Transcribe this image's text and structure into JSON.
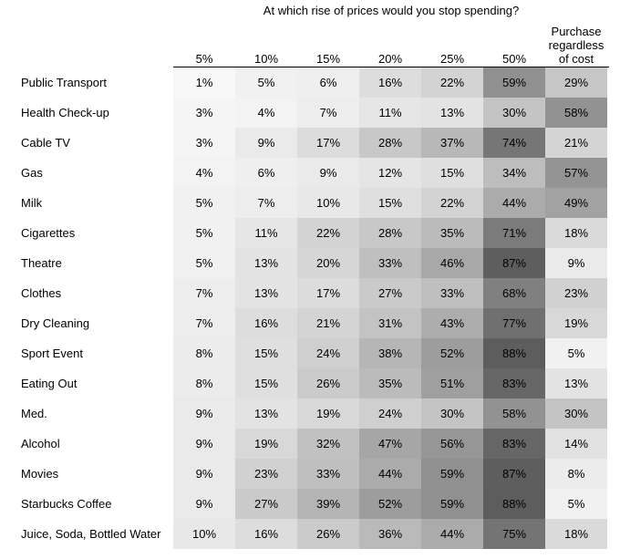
{
  "chart_data": {
    "type": "heatmap",
    "title": "At which rise of prices would you stop spending?",
    "columns": [
      "5%",
      "10%",
      "15%",
      "20%",
      "25%",
      "50%",
      "Purchase\nregardless\nof cost"
    ],
    "rows": [
      "Public Transport",
      "Health Check-up",
      "Cable TV",
      "Gas",
      "Milk",
      "Cigarettes",
      "Theatre",
      "Clothes",
      "Dry Cleaning",
      "Sport Event",
      "Eating Out",
      "Med.",
      "Alcohol",
      "Movies",
      "Starbucks Coffee",
      "Juice, Soda, Bottled Water"
    ],
    "values": [
      [
        1,
        5,
        6,
        16,
        22,
        59,
        29
      ],
      [
        3,
        4,
        7,
        11,
        13,
        30,
        58
      ],
      [
        3,
        9,
        17,
        28,
        37,
        74,
        21
      ],
      [
        4,
        6,
        9,
        12,
        15,
        34,
        57
      ],
      [
        5,
        7,
        10,
        15,
        22,
        44,
        49
      ],
      [
        5,
        11,
        22,
        28,
        35,
        71,
        18
      ],
      [
        5,
        13,
        20,
        33,
        46,
        87,
        9
      ],
      [
        7,
        13,
        17,
        27,
        33,
        68,
        23
      ],
      [
        7,
        16,
        21,
        31,
        43,
        77,
        19
      ],
      [
        8,
        15,
        24,
        38,
        52,
        88,
        5
      ],
      [
        8,
        15,
        26,
        35,
        51,
        83,
        13
      ],
      [
        9,
        13,
        19,
        24,
        30,
        58,
        30
      ],
      [
        9,
        19,
        32,
        47,
        56,
        83,
        14
      ],
      [
        9,
        23,
        33,
        44,
        59,
        87,
        8
      ],
      [
        9,
        27,
        39,
        52,
        59,
        88,
        5
      ],
      [
        10,
        16,
        26,
        36,
        44,
        75,
        18
      ]
    ],
    "value_suffix": "%",
    "color_scale": {
      "low": "#ffffff",
      "high": "#595959"
    }
  }
}
